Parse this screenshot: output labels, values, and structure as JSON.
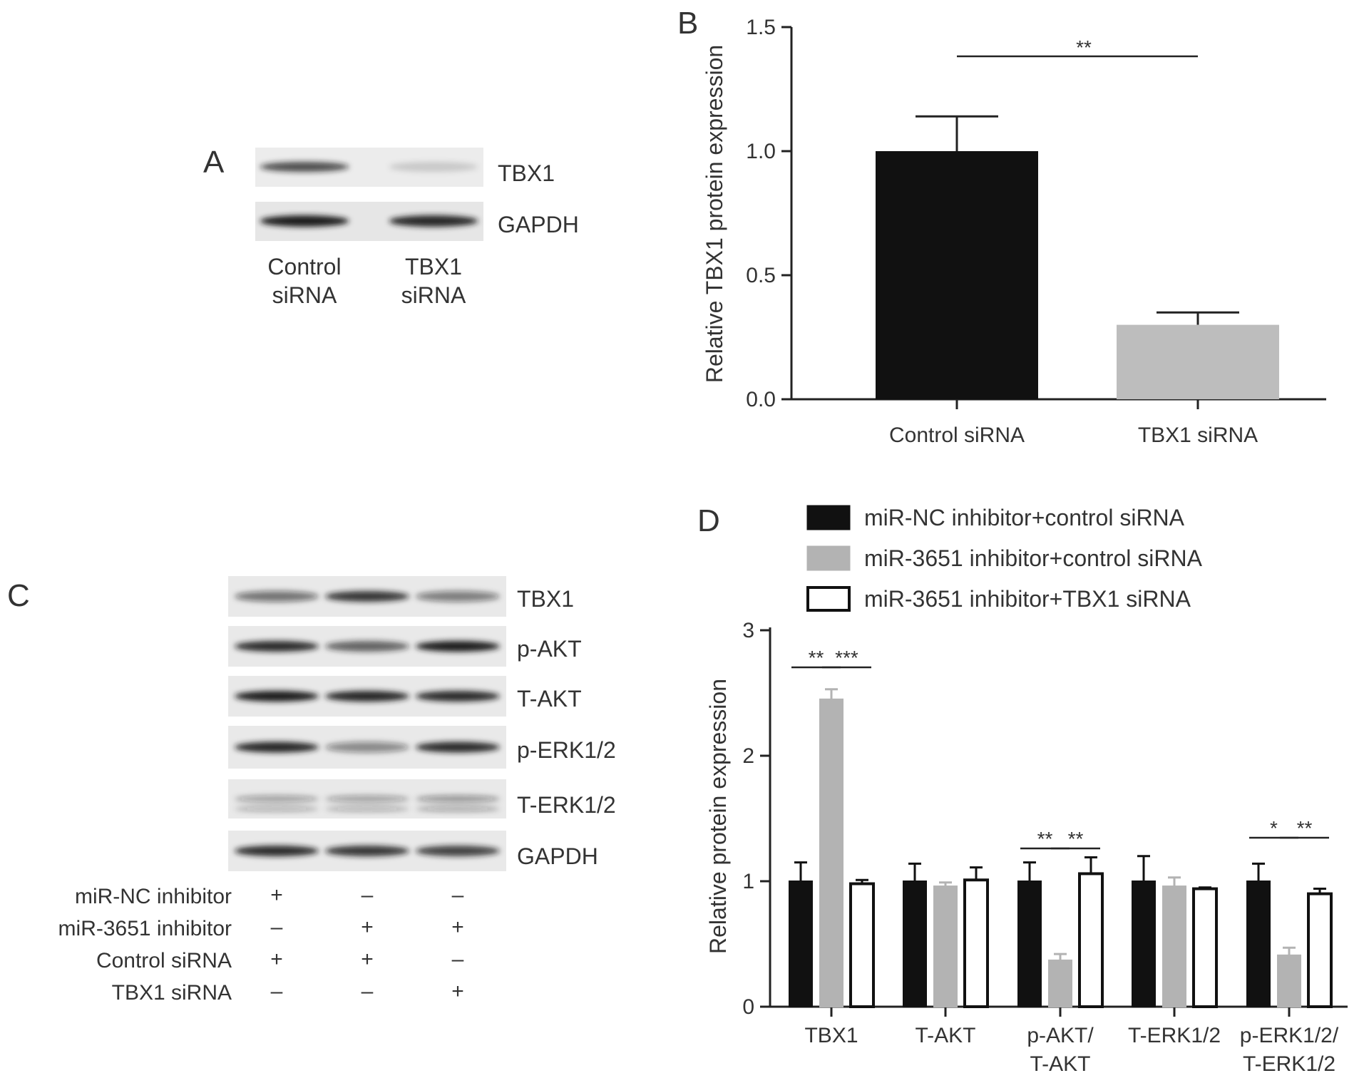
{
  "colors": {
    "series": [
      "#111111",
      "#b3b3b3",
      "#ffffff"
    ],
    "axis": "#222222",
    "blot_bg": "#ececec",
    "band": "#1a1a1a"
  },
  "panel_letters": [
    "A",
    "B",
    "C",
    "D"
  ],
  "panel_a": {
    "proteins": [
      "TBX1",
      "GAPDH"
    ],
    "lanes": [
      {
        "line1": "Control",
        "line2": "siRNA"
      },
      {
        "line1": "TBX1",
        "line2": "siRNA"
      }
    ],
    "band_intensity": [
      [
        0.75,
        0.15
      ],
      [
        1.0,
        0.95
      ]
    ]
  },
  "panel_c": {
    "proteins": [
      "TBX1",
      "p-AKT",
      "T-AKT",
      "p-ERK1/2",
      "T-ERK1/2",
      "GAPDH"
    ],
    "band_intensity": [
      [
        0.55,
        0.85,
        0.5
      ],
      [
        0.9,
        0.65,
        1.0
      ],
      [
        1.0,
        0.95,
        0.9
      ],
      [
        0.95,
        0.45,
        0.9
      ],
      [
        0.35,
        0.35,
        0.4
      ],
      [
        0.9,
        0.85,
        0.8
      ]
    ],
    "conditions": [
      {
        "label": "miR-NC inhibitor",
        "signs": [
          "+",
          "–",
          "–"
        ]
      },
      {
        "label": "miR-3651 inhibitor",
        "signs": [
          "–",
          "+",
          "+"
        ]
      },
      {
        "label": "Control siRNA",
        "signs": [
          "+",
          "+",
          "–"
        ]
      },
      {
        "label": "TBX1 siRNA",
        "signs": [
          "–",
          "–",
          "+"
        ]
      }
    ]
  },
  "chart_data": [
    {
      "type": "bar",
      "panel": "B",
      "categories": [
        "Control siRNA",
        "TBX1 siRNA"
      ],
      "values": [
        1.0,
        0.3
      ],
      "errors": [
        0.14,
        0.05
      ],
      "colors": [
        "#111111",
        "#bdbdbd"
      ],
      "ylabel": "Relative TBX1 protein expression",
      "ylim": [
        0,
        1.5
      ],
      "yticks": [
        "0.0",
        "0.5",
        "1.0",
        "1.5"
      ],
      "significance": [
        {
          "from": 0,
          "to": 1,
          "label": "**"
        }
      ]
    },
    {
      "type": "bar",
      "panel": "D",
      "categories": [
        [
          "TBX1"
        ],
        [
          "T-AKT"
        ],
        [
          "p-AKT/",
          "T-AKT"
        ],
        [
          "T-ERK1/2"
        ],
        [
          "p-ERK1/2/",
          "T-ERK1/2"
        ]
      ],
      "series": [
        {
          "name": "miR-NC inhibitor+control siRNA",
          "values": [
            1.0,
            1.0,
            1.0,
            1.0,
            1.0
          ],
          "errors": [
            0.15,
            0.14,
            0.15,
            0.2,
            0.14
          ]
        },
        {
          "name": "miR-3651 inhibitor+control siRNA",
          "values": [
            2.45,
            0.96,
            0.37,
            0.96,
            0.41
          ],
          "errors": [
            0.08,
            0.03,
            0.05,
            0.07,
            0.06
          ]
        },
        {
          "name": "miR-3651 inhibitor+TBX1 siRNA",
          "values": [
            0.98,
            1.01,
            1.06,
            0.94,
            0.9
          ],
          "errors": [
            0.03,
            0.1,
            0.13,
            0.01,
            0.04
          ]
        }
      ],
      "ylabel": "Relative protein expression",
      "ylim": [
        0,
        3
      ],
      "yticks": [
        "0",
        "1",
        "2",
        "3"
      ],
      "legend_position": "top",
      "significance": [
        {
          "group": 0,
          "from": 0,
          "to": 1,
          "label": "**"
        },
        {
          "group": 0,
          "from": 1,
          "to": 2,
          "label": "***"
        },
        {
          "group": 2,
          "from": 0,
          "to": 1,
          "label": "**"
        },
        {
          "group": 2,
          "from": 1,
          "to": 2,
          "label": "**"
        },
        {
          "group": 4,
          "from": 0,
          "to": 1,
          "label": "*"
        },
        {
          "group": 4,
          "from": 1,
          "to": 2,
          "label": "**"
        }
      ]
    }
  ]
}
